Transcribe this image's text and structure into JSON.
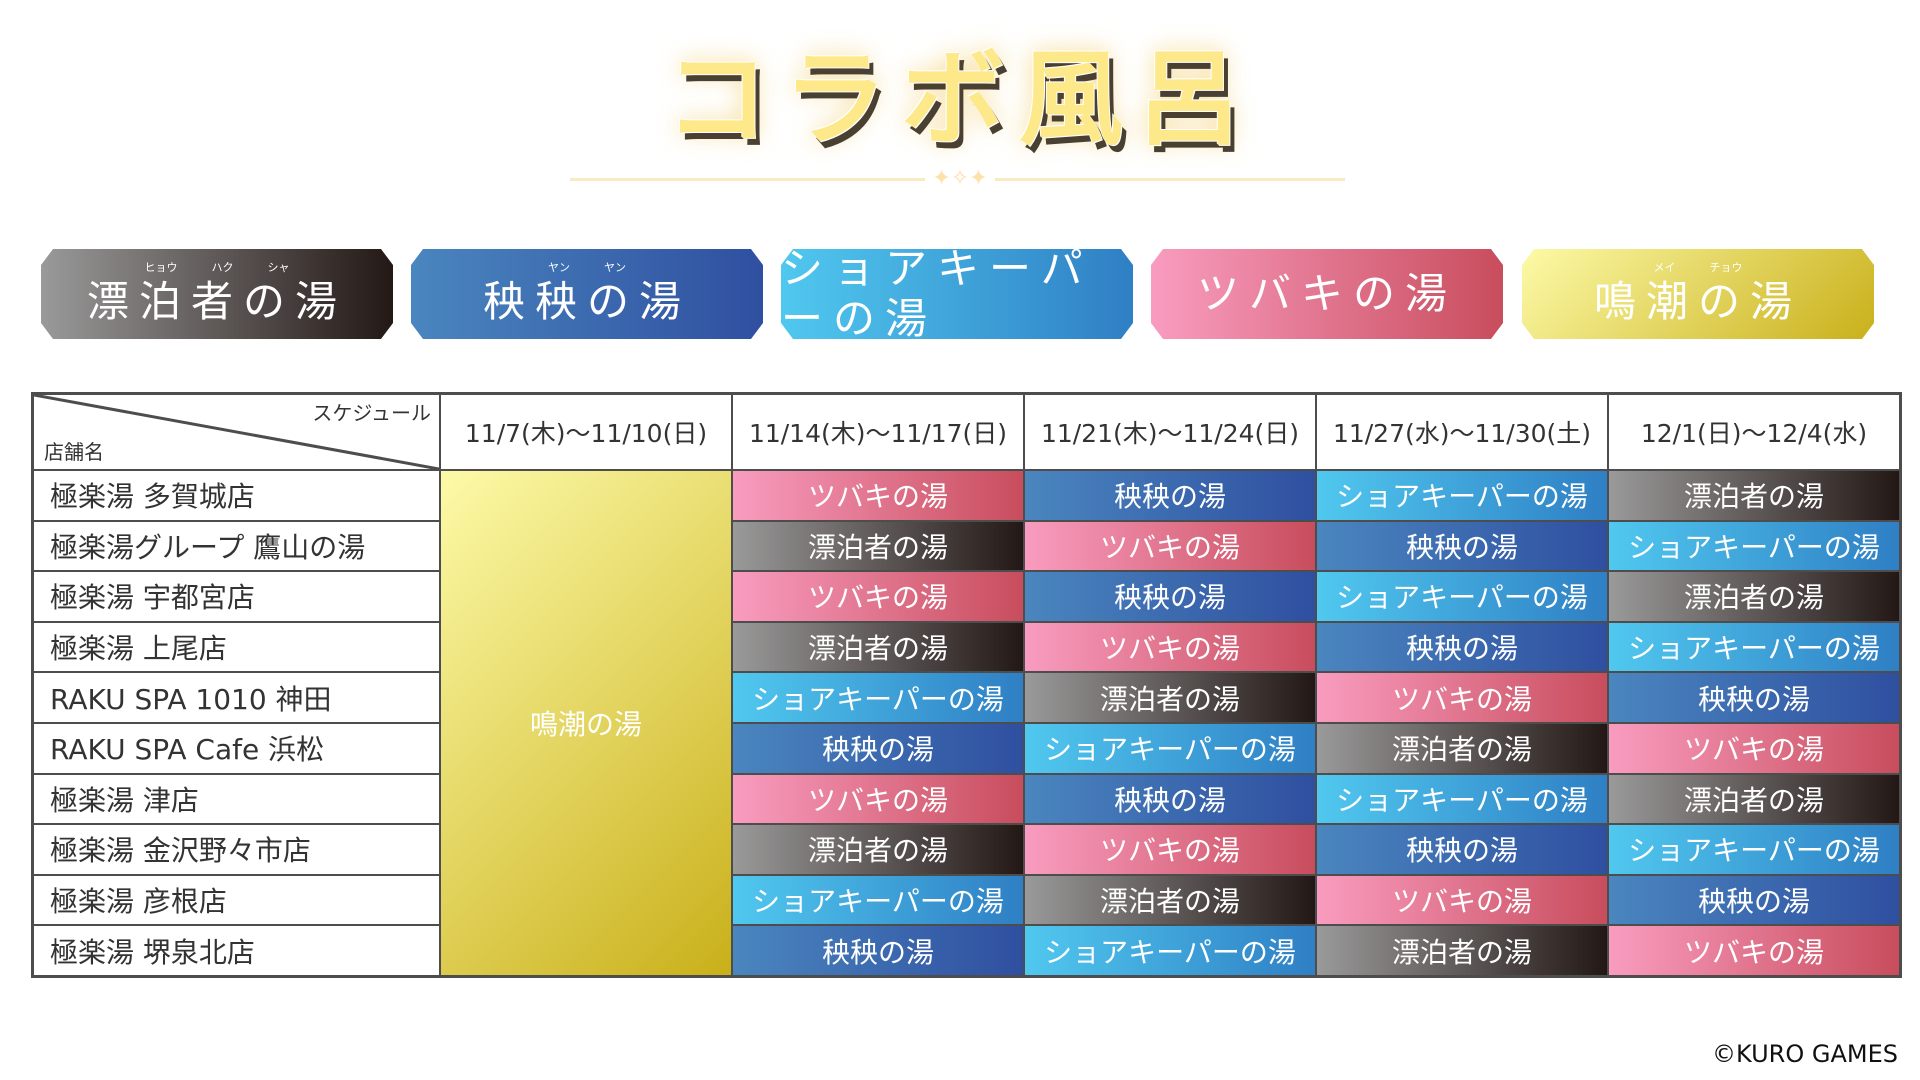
{
  "title": "コラボ風呂",
  "colors": {
    "H": "#231815",
    "Y": "#2f4fa0",
    "S": "#50c8ef",
    "T": "#c84d5d",
    "M": "#c9b01a"
  },
  "banners": [
    {
      "type": "H",
      "label": "漂泊者の湯",
      "ruby": [
        "ヒョウ",
        "ハク",
        "シャ"
      ]
    },
    {
      "type": "Y",
      "label": "秧秧の湯",
      "ruby": [
        "ヤン",
        "ヤン"
      ]
    },
    {
      "type": "S",
      "label": "ショアキーパーの湯",
      "ruby": []
    },
    {
      "type": "T",
      "label": "ツバキの湯",
      "ruby": []
    },
    {
      "type": "M",
      "label": "鳴潮の湯",
      "ruby": [
        "メイ",
        "チョウ"
      ]
    }
  ],
  "bath_names": {
    "H": "漂泊者の湯",
    "Y": "秧秧の湯",
    "S": "ショアキーパーの湯",
    "T": "ツバキの湯",
    "M": "鳴潮の湯"
  },
  "table": {
    "corner_schedule": "スケジュール",
    "corner_store": "店舗名",
    "dates": [
      "11/7(木)〜11/10(日)",
      "11/14(木)〜11/17(日)",
      "11/21(木)〜11/24(日)",
      "11/27(水)〜11/30(土)",
      "12/1(日)〜12/4(水)"
    ],
    "first_week_all": "M",
    "rows": [
      {
        "store": "極楽湯 多賀城店",
        "baths": [
          "T",
          "Y",
          "S",
          "H"
        ]
      },
      {
        "store": "極楽湯グループ 鷹山の湯",
        "baths": [
          "H",
          "T",
          "Y",
          "S"
        ]
      },
      {
        "store": "極楽湯 宇都宮店",
        "baths": [
          "T",
          "Y",
          "S",
          "H"
        ]
      },
      {
        "store": "極楽湯 上尾店",
        "baths": [
          "H",
          "T",
          "Y",
          "S"
        ]
      },
      {
        "store": "RAKU SPA 1010 神田",
        "baths": [
          "S",
          "H",
          "T",
          "Y"
        ]
      },
      {
        "store": "RAKU SPA Cafe 浜松",
        "baths": [
          "Y",
          "S",
          "H",
          "T"
        ]
      },
      {
        "store": "極楽湯 津店",
        "baths": [
          "T",
          "Y",
          "S",
          "H"
        ]
      },
      {
        "store": "極楽湯 金沢野々市店",
        "baths": [
          "H",
          "T",
          "Y",
          "S"
        ]
      },
      {
        "store": "極楽湯 彦根店",
        "baths": [
          "S",
          "H",
          "T",
          "Y"
        ]
      },
      {
        "store": "極楽湯 堺泉北店",
        "baths": [
          "Y",
          "S",
          "H",
          "T"
        ]
      }
    ]
  },
  "copyright": "©KURO GAMES"
}
